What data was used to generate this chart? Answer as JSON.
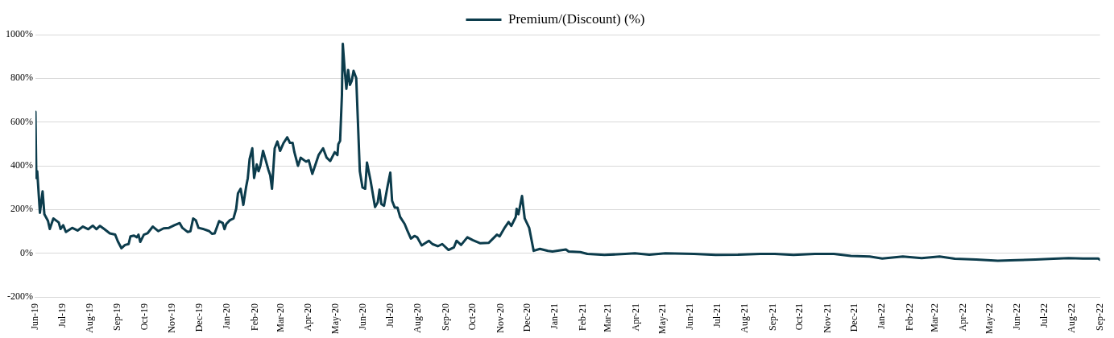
{
  "chart_data": {
    "type": "line",
    "legend": "top",
    "grid": "y",
    "marker": "none",
    "line_style": "solid",
    "xlim": [
      "2019-06-01",
      "2022-09-01"
    ],
    "xticks": [
      {
        "value": "2019-06-01",
        "label": "Jun-19"
      },
      {
        "value": "2019-07-01",
        "label": "Jul-19"
      },
      {
        "value": "2019-08-01",
        "label": "Aug-19"
      },
      {
        "value": "2019-09-01",
        "label": "Sep-19"
      },
      {
        "value": "2019-10-01",
        "label": "Oct-19"
      },
      {
        "value": "2019-11-01",
        "label": "Nov-19"
      },
      {
        "value": "2019-12-01",
        "label": "Dec-19"
      },
      {
        "value": "2020-01-01",
        "label": "Jan-20"
      },
      {
        "value": "2020-02-01",
        "label": "Feb-20"
      },
      {
        "value": "2020-03-01",
        "label": "Mar-20"
      },
      {
        "value": "2020-04-01",
        "label": "Apr-20"
      },
      {
        "value": "2020-05-01",
        "label": "May-20"
      },
      {
        "value": "2020-06-01",
        "label": "Jun-20"
      },
      {
        "value": "2020-07-01",
        "label": "Jul-20"
      },
      {
        "value": "2020-08-01",
        "label": "Aug-20"
      },
      {
        "value": "2020-09-01",
        "label": "Sep-20"
      },
      {
        "value": "2020-10-01",
        "label": "Oct-20"
      },
      {
        "value": "2020-11-01",
        "label": "Nov-20"
      },
      {
        "value": "2020-12-01",
        "label": "Dec-20"
      },
      {
        "value": "2021-01-01",
        "label": "Jan-21"
      },
      {
        "value": "2021-02-01",
        "label": "Feb-21"
      },
      {
        "value": "2021-03-01",
        "label": "Mar-21"
      },
      {
        "value": "2021-04-01",
        "label": "Apr-21"
      },
      {
        "value": "2021-05-01",
        "label": "May-21"
      },
      {
        "value": "2021-06-01",
        "label": "Jun-21"
      },
      {
        "value": "2021-07-01",
        "label": "Jul-21"
      },
      {
        "value": "2021-08-01",
        "label": "Aug-21"
      },
      {
        "value": "2021-09-01",
        "label": "Sep-21"
      },
      {
        "value": "2021-10-01",
        "label": "Oct-21"
      },
      {
        "value": "2021-11-01",
        "label": "Nov-21"
      },
      {
        "value": "2021-12-01",
        "label": "Dec-21"
      },
      {
        "value": "2022-01-01",
        "label": "Jan-22"
      },
      {
        "value": "2022-02-01",
        "label": "Feb-22"
      },
      {
        "value": "2022-03-01",
        "label": "Mar-22"
      },
      {
        "value": "2022-04-01",
        "label": "Apr-22"
      },
      {
        "value": "2022-05-01",
        "label": "May-22"
      },
      {
        "value": "2022-06-01",
        "label": "Jun-22"
      },
      {
        "value": "2022-07-01",
        "label": "Jul-22"
      },
      {
        "value": "2022-08-01",
        "label": "Aug-22"
      },
      {
        "value": "2022-09-01",
        "label": "Sep-22"
      }
    ],
    "ylim": [
      -200,
      1000
    ],
    "yticks": [
      {
        "value": -200,
        "label": "-200%"
      },
      {
        "value": 0,
        "label": "0%"
      },
      {
        "value": 200,
        "label": "200%"
      },
      {
        "value": 400,
        "label": "400%"
      },
      {
        "value": 600,
        "label": "600%"
      },
      {
        "value": 800,
        "label": "800%"
      },
      {
        "value": 1000,
        "label": "1000%"
      }
    ],
    "x": [
      "2019-06-01",
      "2019-06-02",
      "2019-06-03",
      "2019-06-06",
      "2019-06-09",
      "2019-06-11",
      "2019-06-15",
      "2019-06-17",
      "2019-06-21",
      "2019-06-27",
      "2019-06-29",
      "2019-07-02",
      "2019-07-05",
      "2019-07-12",
      "2019-07-18",
      "2019-07-24",
      "2019-07-30",
      "2019-08-04",
      "2019-08-08",
      "2019-08-12",
      "2019-08-17",
      "2019-08-23",
      "2019-08-29",
      "2019-09-01",
      "2019-09-05",
      "2019-09-09",
      "2019-09-13",
      "2019-09-15",
      "2019-09-19",
      "2019-09-22",
      "2019-09-24",
      "2019-09-26",
      "2019-09-30",
      "2019-10-04",
      "2019-10-10",
      "2019-10-16",
      "2019-10-22",
      "2019-10-28",
      "2019-11-03",
      "2019-11-09",
      "2019-11-12",
      "2019-11-18",
      "2019-11-21",
      "2019-11-24",
      "2019-11-27",
      "2019-11-30",
      "2019-12-06",
      "2019-12-12",
      "2019-12-15",
      "2019-12-18",
      "2019-12-23",
      "2019-12-27",
      "2019-12-29",
      "2019-12-31",
      "2020-01-04",
      "2020-01-08",
      "2020-01-11",
      "2020-01-13",
      "2020-01-16",
      "2020-01-19",
      "2020-01-22",
      "2020-01-24",
      "2020-01-26",
      "2020-01-29",
      "2020-01-31",
      "2020-02-03",
      "2020-02-05",
      "2020-02-07",
      "2020-02-10",
      "2020-02-13",
      "2020-02-16",
      "2020-02-18",
      "2020-02-20",
      "2020-02-23",
      "2020-02-26",
      "2020-02-29",
      "2020-03-04",
      "2020-03-08",
      "2020-03-11",
      "2020-03-14",
      "2020-03-16",
      "2020-03-20",
      "2020-03-23",
      "2020-03-29",
      "2020-04-01",
      "2020-04-05",
      "2020-04-09",
      "2020-04-12",
      "2020-04-17",
      "2020-04-21",
      "2020-04-25",
      "2020-04-30",
      "2020-05-03",
      "2020-05-04",
      "2020-05-06",
      "2020-05-08",
      "2020-05-09",
      "2020-05-11",
      "2020-05-13",
      "2020-05-15",
      "2020-05-17",
      "2020-05-19",
      "2020-05-21",
      "2020-05-24",
      "2020-05-28",
      "2020-05-31",
      "2020-06-03",
      "2020-06-05",
      "2020-06-09",
      "2020-06-14",
      "2020-06-17",
      "2020-06-19",
      "2020-06-21",
      "2020-06-24",
      "2020-06-28",
      "2020-07-01",
      "2020-07-03",
      "2020-07-06",
      "2020-07-09",
      "2020-07-12",
      "2020-07-17",
      "2020-07-20",
      "2020-07-24",
      "2020-07-28",
      "2020-07-31",
      "2020-08-05",
      "2020-08-13",
      "2020-08-17",
      "2020-08-23",
      "2020-08-28",
      "2020-09-04",
      "2020-09-10",
      "2020-09-13",
      "2020-09-18",
      "2020-09-25",
      "2020-10-01",
      "2020-10-09",
      "2020-10-19",
      "2020-10-28",
      "2020-10-31",
      "2020-11-06",
      "2020-11-10",
      "2020-11-13",
      "2020-11-18",
      "2020-11-19",
      "2020-11-21",
      "2020-11-25",
      "2020-11-28",
      "2020-12-03",
      "2020-12-08",
      "2020-12-15",
      "2020-12-24",
      "2020-12-29",
      "2021-01-13",
      "2021-01-16",
      "2021-01-29",
      "2021-02-06",
      "2021-02-25",
      "2021-03-20",
      "2021-03-31",
      "2021-04-16",
      "2021-05-04",
      "2021-06-05",
      "2021-06-29",
      "2021-07-24",
      "2021-08-18",
      "2021-09-03",
      "2021-09-24",
      "2021-10-18",
      "2021-11-08",
      "2021-11-27",
      "2021-12-18",
      "2022-01-01",
      "2022-01-24",
      "2022-02-14",
      "2022-03-06",
      "2022-03-23",
      "2022-04-16",
      "2022-05-10",
      "2022-05-31",
      "2022-06-21",
      "2022-07-11",
      "2022-07-28",
      "2022-08-13",
      "2022-08-30",
      "2022-09-01"
    ],
    "series": [
      {
        "name": "Premium/(Discount) (%)",
        "color": "#0c3c4c",
        "values": [
          647,
          344,
          375,
          185,
          283,
          178,
          148,
          111,
          159,
          141,
          111,
          128,
          97,
          116,
          104,
          122,
          110,
          126,
          110,
          125,
          110,
          91,
          85,
          54,
          23,
          38,
          42,
          77,
          81,
          73,
          85,
          52,
          85,
          91,
          122,
          101,
          114,
          116,
          128,
          138,
          116,
          97,
          101,
          159,
          151,
          116,
          110,
          101,
          89,
          91,
          147,
          138,
          110,
          134,
          151,
          159,
          203,
          274,
          295,
          221,
          301,
          344,
          431,
          480,
          344,
          406,
          375,
          400,
          468,
          425,
          381,
          357,
          295,
          480,
          511,
          468,
          505,
          530,
          505,
          505,
          462,
          400,
          437,
          419,
          425,
          363,
          412,
          449,
          480,
          437,
          422,
          462,
          449,
          499,
          514,
          721,
          958,
          844,
          752,
          838,
          770,
          789,
          834,
          801,
          375,
          301,
          295,
          415,
          332,
          211,
          233,
          291,
          225,
          217,
          307,
          369,
          240,
          209,
          209,
          166,
          134,
          104,
          67,
          79,
          73,
          36,
          57,
          42,
          32,
          42,
          15,
          27,
          57,
          38,
          73,
          60,
          46,
          48,
          85,
          77,
          119,
          143,
          125,
          166,
          203,
          178,
          262,
          159,
          116,
          11,
          20,
          11,
          8,
          17,
          8,
          5,
          -3,
          -8,
          -3,
          0,
          -7,
          0,
          -3,
          -8,
          -7,
          -3,
          -3,
          -8,
          -3,
          -3,
          -12,
          -15,
          -24,
          -15,
          -22,
          -15,
          -25,
          -29,
          -34,
          -32,
          -29,
          -25,
          -22,
          -24,
          -24,
          -30
        ]
      }
    ]
  }
}
